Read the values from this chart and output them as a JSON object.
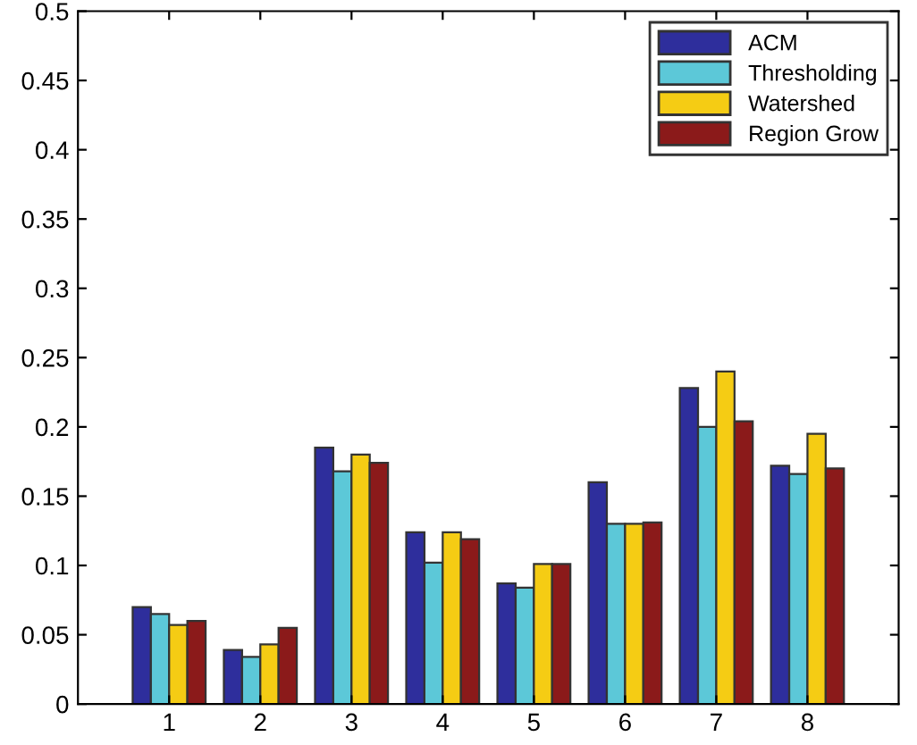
{
  "chart_data": {
    "type": "bar",
    "categories": [
      "1",
      "2",
      "3",
      "4",
      "5",
      "6",
      "7",
      "8"
    ],
    "series": [
      {
        "name": "ACM",
        "color": "#2e2e9c",
        "values": [
          0.07,
          0.039,
          0.185,
          0.124,
          0.087,
          0.16,
          0.228,
          0.172
        ]
      },
      {
        "name": "Thresholding",
        "color": "#5cc8d8",
        "values": [
          0.065,
          0.034,
          0.168,
          0.102,
          0.084,
          0.13,
          0.2,
          0.166
        ]
      },
      {
        "name": "Watershed",
        "color": "#f5cc14",
        "values": [
          0.057,
          0.043,
          0.18,
          0.124,
          0.101,
          0.13,
          0.24,
          0.195
        ]
      },
      {
        "name": "Region Grow",
        "color": "#8b1a1a",
        "values": [
          0.06,
          0.055,
          0.174,
          0.119,
          0.101,
          0.131,
          0.204,
          0.17
        ]
      }
    ],
    "ylim": [
      0,
      0.5
    ],
    "yticks": [
      0,
      0.05,
      0.1,
      0.15,
      0.2,
      0.25,
      0.3,
      0.35,
      0.4,
      0.45,
      0.5
    ],
    "grid": false,
    "legend": "top right"
  }
}
